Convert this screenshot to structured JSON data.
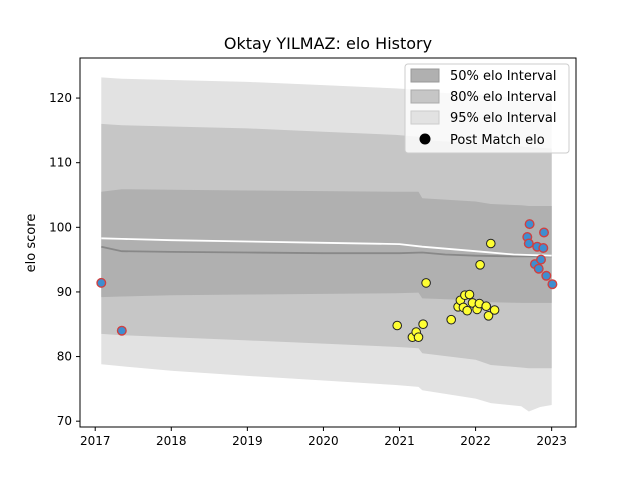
{
  "chart_data": {
    "type": "scatter",
    "title": "Oktay YILMAZ: elo History",
    "xlabel": "",
    "ylabel": "elo score",
    "xlim": [
      2016.8,
      2023.32
    ],
    "ylim": [
      69.1,
      126.2
    ],
    "x_ticks": [
      2017,
      2018,
      2019,
      2020,
      2021,
      2022,
      2023
    ],
    "x_tick_labels": [
      "2017",
      "2018",
      "2019",
      "2020",
      "2021",
      "2022",
      "2023"
    ],
    "y_ticks": [
      70,
      80,
      90,
      100,
      110,
      120
    ],
    "y_tick_labels": [
      "70",
      "80",
      "90",
      "100",
      "110",
      "120"
    ],
    "legend": {
      "placement": "top-right",
      "entries": [
        "50% elo Interval",
        "80% elo Interval",
        "95% elo Interval",
        "Post Match elo"
      ]
    },
    "colors": {
      "band50": "#b0b0b0",
      "band80": "#c6c6c6",
      "band95": "#e2e2e2",
      "mean_line": "#ffffff",
      "median_line": "#888888",
      "point_win": "#ffff33",
      "point_loss": "#3e8ed0",
      "point_edge": "#222222",
      "point_loss_edge": "#d04040"
    },
    "bands": {
      "x": [
        2017.08,
        2017.35,
        2018.0,
        2019.0,
        2020.0,
        2020.95,
        2021.25,
        2021.3,
        2022.0,
        2022.2,
        2022.6,
        2022.7,
        2022.85,
        2023.0
      ],
      "p95_hi": [
        123.2,
        123.0,
        122.8,
        122.5,
        122.0,
        121.5,
        121.3,
        121.0,
        120.5,
        120.3,
        120.0,
        119.9,
        119.8,
        119.6
      ],
      "p80_hi": [
        116.0,
        115.8,
        115.6,
        115.3,
        114.8,
        114.3,
        114.0,
        113.5,
        113.0,
        112.7,
        112.5,
        112.4,
        112.3,
        112.2
      ],
      "p50_hi": [
        105.5,
        105.9,
        105.8,
        105.7,
        105.6,
        105.5,
        105.5,
        104.5,
        104.0,
        103.6,
        103.4,
        103.3,
        103.3,
        103.3
      ],
      "p50_lo": [
        89.2,
        89.3,
        89.5,
        89.6,
        89.7,
        89.8,
        89.9,
        89.0,
        88.7,
        88.4,
        88.3,
        88.3,
        88.3,
        88.3
      ],
      "p80_lo": [
        83.5,
        83.3,
        83.0,
        82.5,
        82.0,
        81.5,
        81.3,
        80.5,
        79.5,
        78.7,
        78.3,
        78.2,
        78.2,
        78.2
      ],
      "p95_lo": [
        78.8,
        78.5,
        77.8,
        77.0,
        76.3,
        75.6,
        75.3,
        74.8,
        73.5,
        72.8,
        72.3,
        71.5,
        72.2,
        72.5
      ]
    },
    "mean_line": {
      "x": [
        2017.08,
        2017.35,
        2018.0,
        2019.0,
        2020.0,
        2021.0,
        2021.3,
        2022.0,
        2022.5,
        2023.0
      ],
      "y": [
        98.3,
        98.2,
        98.0,
        97.8,
        97.6,
        97.4,
        97.0,
        96.3,
        95.8,
        95.6
      ]
    },
    "median_line": {
      "x": [
        2017.08,
        2017.35,
        2018.0,
        2019.0,
        2020.0,
        2021.0,
        2021.3,
        2021.6,
        2022.0,
        2022.5,
        2023.0
      ],
      "y": [
        97.0,
        96.3,
        96.2,
        96.1,
        96.0,
        96.0,
        96.1,
        95.8,
        95.6,
        95.5,
        95.5
      ]
    },
    "series": [
      {
        "name": "Post Match elo",
        "points": [
          {
            "x": 2017.08,
            "y": 91.4,
            "result": "loss"
          },
          {
            "x": 2017.35,
            "y": 84.0,
            "result": "loss"
          },
          {
            "x": 2020.97,
            "y": 84.8,
            "result": "win"
          },
          {
            "x": 2021.17,
            "y": 83.0,
            "result": "win"
          },
          {
            "x": 2021.22,
            "y": 83.8,
            "result": "win"
          },
          {
            "x": 2021.25,
            "y": 83.0,
            "result": "win"
          },
          {
            "x": 2021.31,
            "y": 85.0,
            "result": "win"
          },
          {
            "x": 2021.35,
            "y": 91.4,
            "result": "win"
          },
          {
            "x": 2021.68,
            "y": 85.7,
            "result": "win"
          },
          {
            "x": 2021.77,
            "y": 87.7,
            "result": "win"
          },
          {
            "x": 2021.8,
            "y": 88.7,
            "result": "win"
          },
          {
            "x": 2021.84,
            "y": 87.6,
            "result": "win"
          },
          {
            "x": 2021.86,
            "y": 89.5,
            "result": "win"
          },
          {
            "x": 2021.89,
            "y": 87.1,
            "result": "win"
          },
          {
            "x": 2021.92,
            "y": 89.6,
            "result": "win"
          },
          {
            "x": 2021.96,
            "y": 88.3,
            "result": "win"
          },
          {
            "x": 2022.02,
            "y": 87.3,
            "result": "win"
          },
          {
            "x": 2022.05,
            "y": 88.2,
            "result": "win"
          },
          {
            "x": 2022.06,
            "y": 94.2,
            "result": "win"
          },
          {
            "x": 2022.14,
            "y": 87.8,
            "result": "win"
          },
          {
            "x": 2022.17,
            "y": 86.3,
            "result": "win"
          },
          {
            "x": 2022.2,
            "y": 97.5,
            "result": "win"
          },
          {
            "x": 2022.25,
            "y": 87.2,
            "result": "win"
          },
          {
            "x": 2022.68,
            "y": 98.5,
            "result": "loss"
          },
          {
            "x": 2022.7,
            "y": 97.5,
            "result": "loss"
          },
          {
            "x": 2022.71,
            "y": 100.5,
            "result": "loss"
          },
          {
            "x": 2022.78,
            "y": 94.3,
            "result": "loss"
          },
          {
            "x": 2022.81,
            "y": 97.0,
            "result": "loss"
          },
          {
            "x": 2022.83,
            "y": 93.6,
            "result": "loss"
          },
          {
            "x": 2022.86,
            "y": 95.0,
            "result": "loss"
          },
          {
            "x": 2022.89,
            "y": 96.8,
            "result": "loss"
          },
          {
            "x": 2022.9,
            "y": 99.2,
            "result": "loss"
          },
          {
            "x": 2022.93,
            "y": 92.5,
            "result": "loss"
          },
          {
            "x": 2023.01,
            "y": 91.2,
            "result": "loss"
          }
        ]
      }
    ]
  }
}
